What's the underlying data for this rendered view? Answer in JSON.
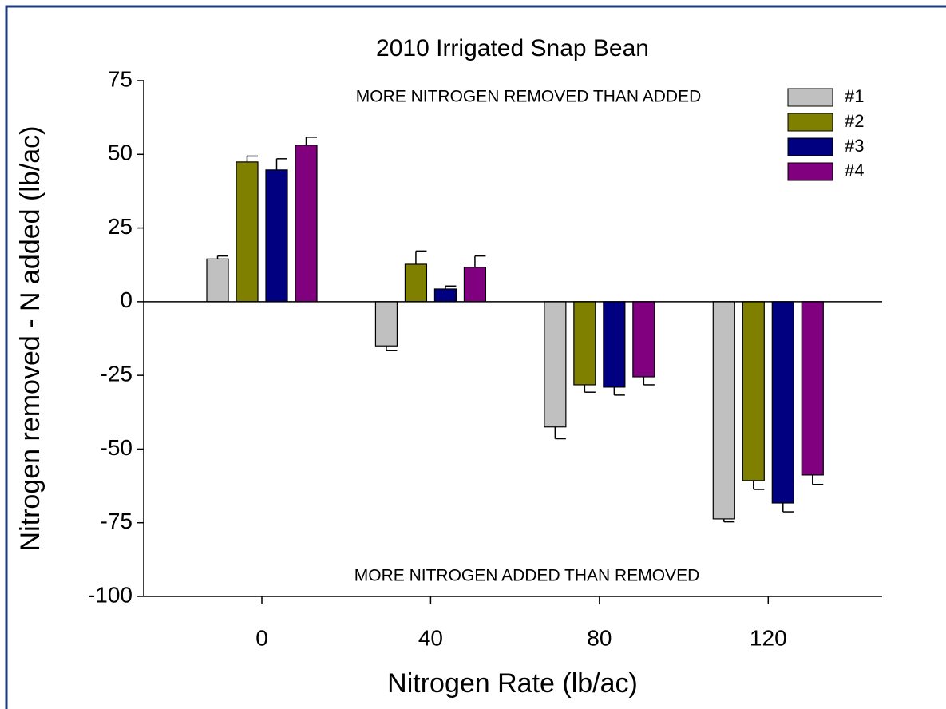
{
  "chart_data": {
    "type": "bar",
    "title": "2010 Irrigated Snap Bean",
    "x_label": "Nitrogen Rate (lb/ac)",
    "y_label": "Nitrogen removed - N added (lb/ac)",
    "annotations": [
      "MORE NITROGEN REMOVED THAN ADDED",
      "MORE NITROGEN ADDED THAN REMOVED"
    ],
    "x": [
      0,
      40,
      80,
      120
    ],
    "xlim": [
      -28,
      147
    ],
    "xticks": [
      0,
      40,
      80,
      120
    ],
    "ylim": [
      -100,
      75
    ],
    "yticks": [
      -100,
      -75,
      -50,
      -25,
      0,
      25,
      50,
      75
    ],
    "legend": "upper right",
    "series": [
      {
        "name": "#1",
        "color": "#c0c0c0",
        "values": [
          14.5,
          -15,
          -42.5,
          -73.7
        ],
        "errors": [
          1,
          1.5,
          4,
          1
        ]
      },
      {
        "name": "#2",
        "color": "#808000",
        "values": [
          47.4,
          12.7,
          -28.2,
          -60.7
        ],
        "errors": [
          2,
          4.5,
          2.5,
          3
        ]
      },
      {
        "name": "#3",
        "color": "#000080",
        "values": [
          44.7,
          4.3,
          -29,
          -68.3
        ],
        "errors": [
          3.8,
          1,
          2.7,
          3
        ]
      },
      {
        "name": "#4",
        "color": "#800080",
        "values": [
          53.1,
          11.7,
          -25.5,
          -58.8
        ],
        "errors": [
          2.7,
          3.8,
          2.7,
          3.2
        ]
      }
    ]
  }
}
